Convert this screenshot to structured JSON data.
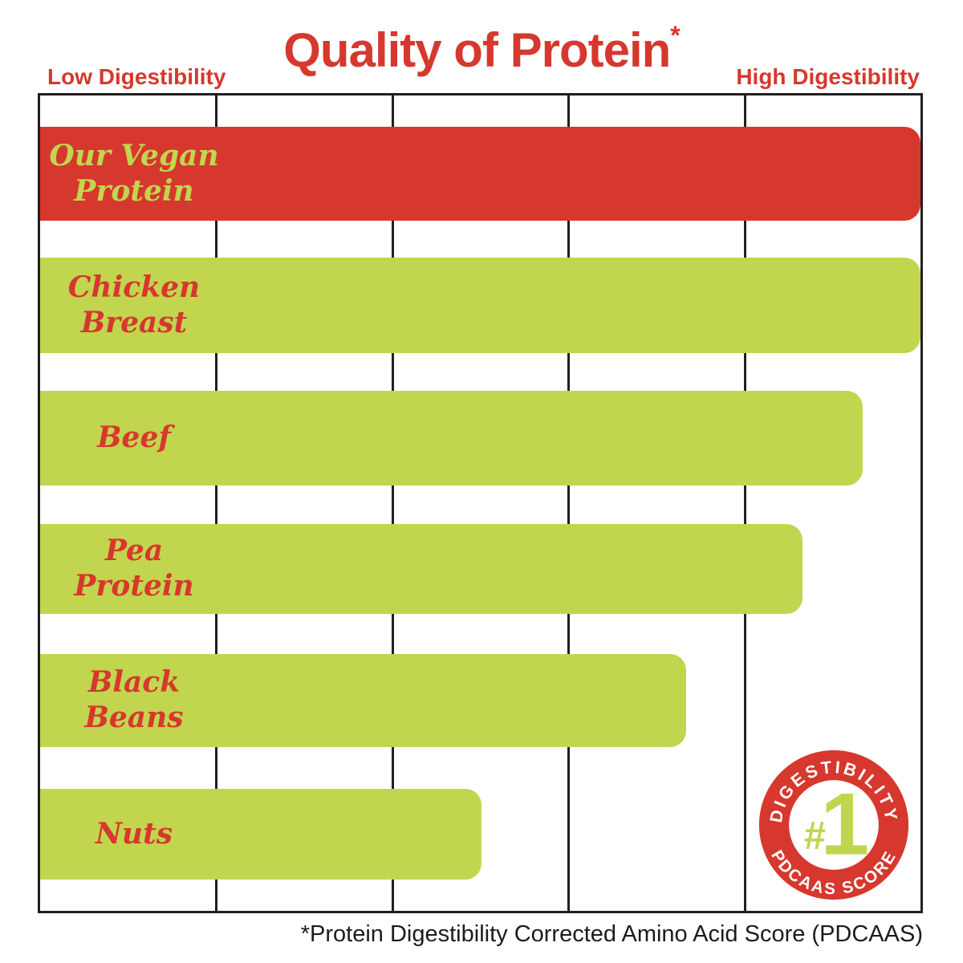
{
  "title": {
    "text": "Quality of Protein",
    "asterisk": "*"
  },
  "axis": {
    "left_label": "Low Digestibility",
    "right_label": "High Digestibility"
  },
  "footnote": "*Protein Digestibility Corrected Amino Acid Score (PDCAAS)",
  "colors": {
    "red": "#d6382e",
    "green": "#c2d54e",
    "ink": "#231f20",
    "white": "#ffffff"
  },
  "badge": {
    "top_text": "DIGESTIBILITY",
    "bottom_text": "PDCAAS SCORE",
    "center_hash": "#",
    "center_number": "1"
  },
  "chart_data": {
    "type": "bar",
    "orientation": "horizontal",
    "title": "Quality of Protein*",
    "xlabel_left": "Low Digestibility",
    "xlabel_right": "High Digestibility",
    "x_axis": {
      "range": [
        0,
        1.0
      ],
      "numeric_ticks_shown": false,
      "gridlines_at": [
        0.2,
        0.4,
        0.6,
        0.8
      ],
      "grid": true
    },
    "categories": [
      "Our Vegan Protein",
      "Chicken Breast",
      "Beef",
      "Pea Protein",
      "Black Beans",
      "Nuts"
    ],
    "values_pdcaas_estimated": [
      1.0,
      1.0,
      0.93,
      0.87,
      0.73,
      0.5
    ],
    "bars": [
      {
        "id": "our-vegan-protein",
        "label_lines": [
          "Our Vegan",
          "Protein"
        ],
        "value": 1.0,
        "width_pct": 100,
        "color": "#d6382e",
        "text_color": "#c2d54e"
      },
      {
        "id": "chicken-breast",
        "label_lines": [
          "Chicken",
          "Breast"
        ],
        "value": 1.0,
        "width_pct": 100,
        "color": "#c2d54e",
        "text_color": "#d6382e"
      },
      {
        "id": "beef",
        "label_lines": [
          "Beef"
        ],
        "value": 0.93,
        "width_pct": 93.4,
        "color": "#c2d54e",
        "text_color": "#d6382e"
      },
      {
        "id": "pea-protein",
        "label_lines": [
          "Pea",
          "Protein"
        ],
        "value": 0.87,
        "width_pct": 86.6,
        "color": "#c2d54e",
        "text_color": "#d6382e"
      },
      {
        "id": "black-beans",
        "label_lines": [
          "Black",
          "Beans"
        ],
        "value": 0.73,
        "width_pct": 73.4,
        "color": "#c2d54e",
        "text_color": "#d6382e"
      },
      {
        "id": "nuts",
        "label_lines": [
          "Nuts"
        ],
        "value": 0.5,
        "width_pct": 50.1,
        "color": "#c2d54e",
        "text_color": "#d6382e"
      }
    ]
  }
}
